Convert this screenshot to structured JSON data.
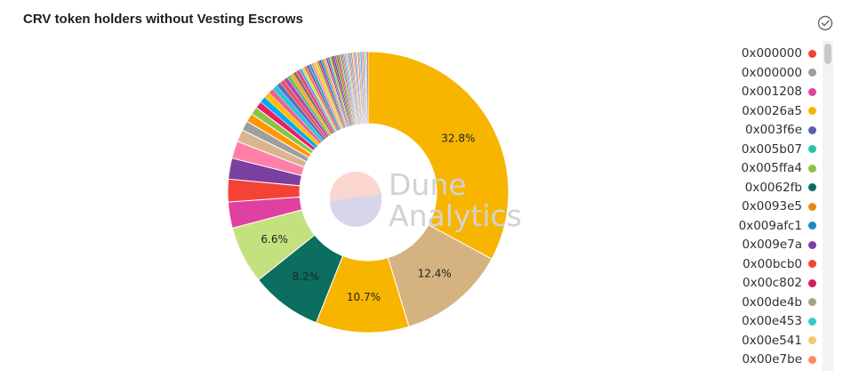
{
  "title": "CRV token holders without Vesting Escrows",
  "watermark": {
    "line1": "Dune",
    "line2": "Analytics"
  },
  "icons": {
    "check": "check-circle-icon"
  },
  "chart_data": {
    "type": "pie",
    "variant": "donut",
    "title": "CRV token holders without Vesting Escrows",
    "slices": [
      {
        "value": 32.8,
        "label": "32.8%",
        "color": "#f7b500"
      },
      {
        "value": 12.4,
        "label": "12.4%",
        "color": "#d4b380"
      },
      {
        "value": 10.7,
        "label": "10.7%",
        "color": "#f7b500"
      },
      {
        "value": 8.2,
        "label": "8.2%",
        "color": "#0b6e5f"
      },
      {
        "value": 6.6,
        "label": "6.6%",
        "color": "#c4e17f"
      },
      {
        "value": 3.0,
        "color": "#e040a0"
      },
      {
        "value": 2.6,
        "color": "#f44336"
      },
      {
        "value": 2.4,
        "color": "#7b3fa0"
      },
      {
        "value": 2.0,
        "color": "#ff7fa6"
      },
      {
        "value": 1.4,
        "color": "#d9b48f"
      },
      {
        "value": 1.1,
        "color": "#9e9e9e"
      },
      {
        "value": 1.0,
        "color": "#ff9800"
      },
      {
        "value": 0.9,
        "color": "#8bc34a"
      },
      {
        "value": 0.8,
        "color": "#e91e63"
      },
      {
        "value": 0.7,
        "color": "#03a9f4"
      },
      {
        "value": 0.7,
        "color": "#ffc107"
      },
      {
        "value": 0.6,
        "color": "#f06292"
      },
      {
        "value": 0.6,
        "color": "#26c6da"
      },
      {
        "value": 0.5,
        "color": "#5c6bc0"
      },
      {
        "value": 0.5,
        "color": "#ef5350"
      },
      {
        "value": 0.5,
        "color": "#ab47bc"
      },
      {
        "value": 0.4,
        "color": "#66bb6a"
      },
      {
        "value": 0.4,
        "color": "#ffa726"
      },
      {
        "value": 0.4,
        "color": "#8d6e63"
      },
      {
        "value": 0.4,
        "color": "#ec407a"
      },
      {
        "value": 0.3,
        "color": "#42a5f5"
      },
      {
        "value": 0.3,
        "color": "#d4e157"
      },
      {
        "value": 0.3,
        "color": "#ff7043"
      },
      {
        "value": 0.3,
        "color": "#7e57c2"
      },
      {
        "value": 0.3,
        "color": "#26a69a"
      },
      {
        "value": 0.3,
        "color": "#f48fb1"
      },
      {
        "value": 0.3,
        "color": "#ffca28"
      },
      {
        "value": 0.2,
        "color": "#9ccc65"
      },
      {
        "value": 0.2,
        "color": "#e53935"
      },
      {
        "value": 0.2,
        "color": "#5e35b1"
      },
      {
        "value": 0.2,
        "color": "#00acc1"
      },
      {
        "value": 0.2,
        "color": "#fb8c00"
      },
      {
        "value": 0.2,
        "color": "#bdbdbd"
      },
      {
        "value": 0.2,
        "color": "#d81b60"
      },
      {
        "value": 0.2,
        "color": "#1e88e5"
      },
      {
        "value": 0.2,
        "color": "#c0ca33"
      },
      {
        "value": 0.2,
        "color": "#6d4c41"
      },
      {
        "value": 0.2,
        "color": "#8e24aa"
      },
      {
        "value": 0.2,
        "color": "#43a047"
      },
      {
        "value": 0.2,
        "color": "#f4511e"
      },
      {
        "value": 0.15,
        "color": "#3949ab"
      },
      {
        "value": 0.15,
        "color": "#ffb300"
      },
      {
        "value": 0.15,
        "color": "#00897b"
      },
      {
        "value": 0.15,
        "color": "#e57373"
      },
      {
        "value": 0.15,
        "color": "#ba68c8"
      },
      {
        "value": 0.15,
        "color": "#4fc3f7"
      },
      {
        "value": 0.15,
        "color": "#aed581"
      },
      {
        "value": 0.15,
        "color": "#ff8a65"
      },
      {
        "value": 0.15,
        "color": "#9575cd"
      },
      {
        "value": 0.15,
        "color": "#4db6ac"
      },
      {
        "value": 0.15,
        "color": "#f06292"
      },
      {
        "value": 0.15,
        "color": "#ffd54f"
      },
      {
        "value": 0.15,
        "color": "#a1887f"
      },
      {
        "value": 0.15,
        "color": "#7986cb"
      },
      {
        "value": 0.15,
        "color": "#e0e0e0"
      },
      {
        "value": 0.15,
        "color": "#ff5252"
      },
      {
        "value": 0.15,
        "color": "#69f0ae"
      },
      {
        "value": 0.15,
        "color": "#448aff"
      },
      {
        "value": 0.15,
        "color": "#ffab40"
      },
      {
        "value": 0.15,
        "color": "#e040fb"
      },
      {
        "value": 0.15,
        "color": "#b2ff59"
      },
      {
        "value": 0.15,
        "color": "#18ffff"
      },
      {
        "value": 0.15,
        "color": "#ff4081"
      }
    ],
    "legend": {
      "position": "right",
      "entries": [
        {
          "label": "0x000000",
          "color": "#f44336"
        },
        {
          "label": "0x000000",
          "color": "#9e9e9e"
        },
        {
          "label": "0x001208",
          "color": "#e040a0"
        },
        {
          "label": "0x0026a5",
          "color": "#f7b500"
        },
        {
          "label": "0x003f6e",
          "color": "#5c5fb0"
        },
        {
          "label": "0x005b07",
          "color": "#26c6a6"
        },
        {
          "label": "0x005ffa4",
          "color": "#8bc34a"
        },
        {
          "label": "0x0062fb",
          "color": "#0b6e5f"
        },
        {
          "label": "0x0093e5",
          "color": "#e88a1a"
        },
        {
          "label": "0x009afc1",
          "color": "#1e88c5"
        },
        {
          "label": "0x009e7a",
          "color": "#7b3fa0"
        },
        {
          "label": "0x00bcb0",
          "color": "#f44336"
        },
        {
          "label": "0x00c802",
          "color": "#d81b60"
        },
        {
          "label": "0x00de4b",
          "color": "#a8a090"
        },
        {
          "label": "0x00e453",
          "color": "#3ec9c9"
        },
        {
          "label": "0x00e541",
          "color": "#f5c86a"
        },
        {
          "label": "0x00e7be",
          "color": "#ff8a65"
        }
      ]
    }
  }
}
